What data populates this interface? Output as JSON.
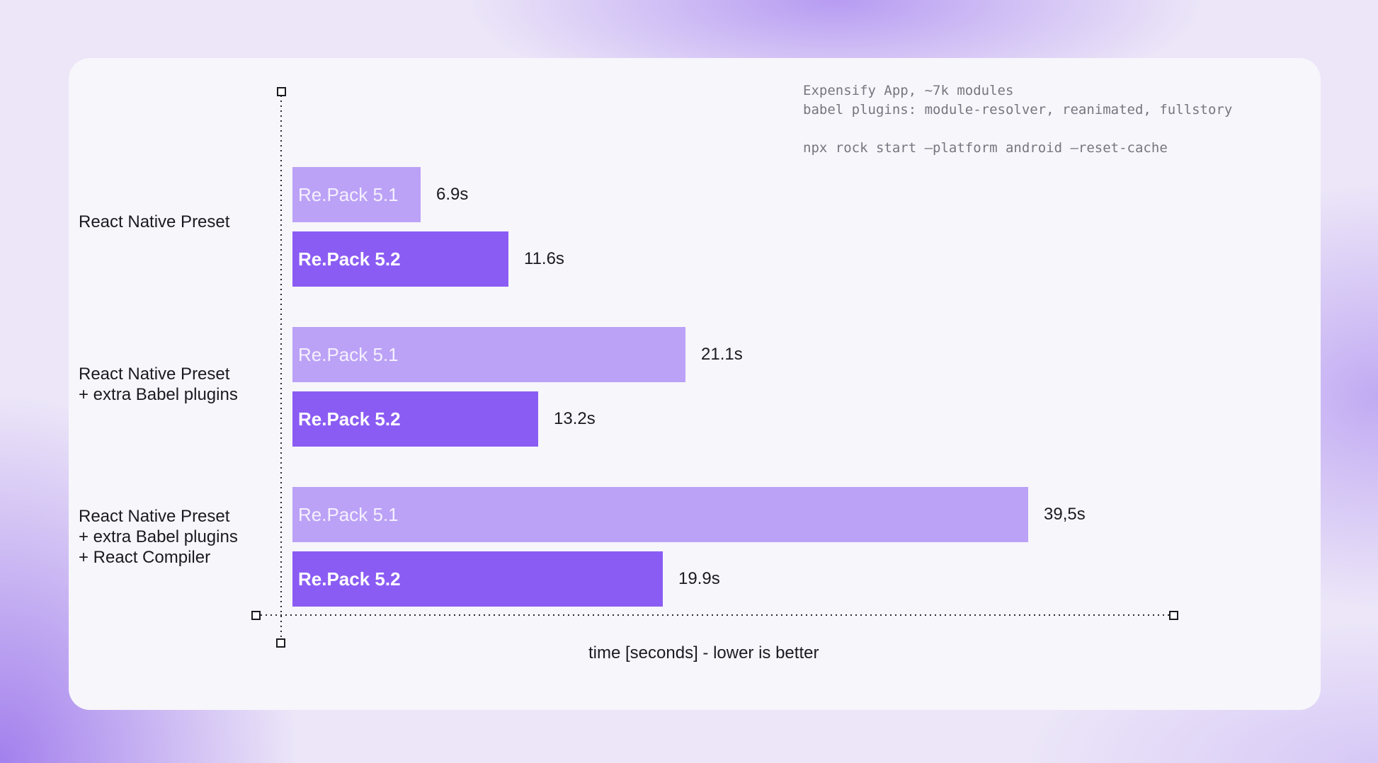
{
  "annotation": {
    "line1": "Expensify App, ~7k modules",
    "line2": "babel plugins: module-resolver, reanimated, fullstory",
    "line3": "npx rock start —platform android —reset-cache"
  },
  "chart_data": {
    "type": "bar",
    "orientation": "horizontal",
    "categories": [
      [
        "React Native Preset"
      ],
      [
        "React Native Preset",
        "+ extra Babel plugins"
      ],
      [
        "React Native Preset",
        "+ extra Babel plugins",
        "+ React Compiler"
      ]
    ],
    "series": [
      {
        "name": "Re.Pack 5.1",
        "values": [
          6.9,
          21.1,
          39.5
        ],
        "labels": [
          "6.9s",
          "21.1s",
          "39,5s"
        ],
        "color": "#bba2f6"
      },
      {
        "name": "Re.Pack 5.2",
        "values": [
          11.6,
          13.2,
          19.9
        ],
        "labels": [
          "11.6s",
          "13.2s",
          "19.9s"
        ],
        "color": "#8b5cf4"
      }
    ],
    "xlabel": "time [seconds] - lower is better",
    "ylabel": "",
    "xlim": [
      0,
      43.5
    ],
    "grid": false,
    "legend": "none"
  }
}
